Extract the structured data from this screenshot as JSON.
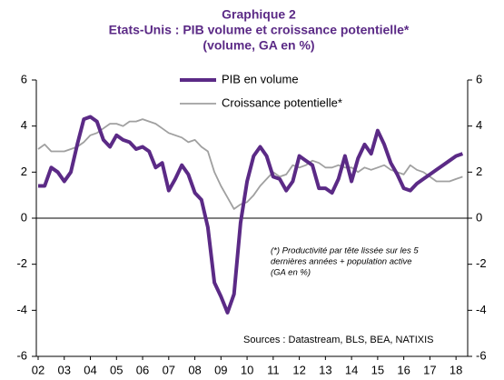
{
  "chart_data": {
    "type": "line",
    "title": [
      "Graphique 2",
      "Etats-Unis : PIB volume et croissance potentielle*",
      "(volume, GA en %)"
    ],
    "categories": [
      "02",
      null,
      null,
      null,
      "03",
      null,
      null,
      null,
      "04",
      null,
      null,
      null,
      "05",
      null,
      null,
      null,
      "06",
      null,
      null,
      null,
      "07",
      null,
      null,
      null,
      "08",
      null,
      null,
      null,
      "09",
      null,
      null,
      null,
      "10",
      null,
      null,
      null,
      "11",
      null,
      null,
      null,
      "12",
      null,
      null,
      null,
      "13",
      null,
      null,
      null,
      "14",
      null,
      null,
      null,
      "15",
      null,
      null,
      null,
      "16",
      null,
      null,
      null,
      "17",
      null,
      null,
      null,
      "18",
      null
    ],
    "series": [
      {
        "name": "PIB en volume",
        "color": "#5b2a86",
        "values": [
          1.4,
          1.4,
          2.2,
          2.0,
          1.6,
          2.0,
          3.2,
          4.3,
          4.4,
          4.2,
          3.4,
          3.1,
          3.6,
          3.4,
          3.3,
          3.0,
          3.1,
          2.9,
          2.2,
          2.4,
          1.2,
          1.7,
          2.3,
          1.9,
          1.1,
          0.8,
          -0.4,
          -2.8,
          -3.4,
          -4.1,
          -3.3,
          -0.2,
          1.6,
          2.7,
          3.1,
          2.7,
          1.8,
          1.7,
          1.2,
          1.6,
          2.7,
          2.5,
          2.3,
          1.3,
          1.3,
          1.1,
          1.7,
          2.7,
          1.6,
          2.6,
          3.2,
          2.8,
          3.8,
          3.2,
          2.4,
          1.9,
          1.3,
          1.2,
          1.5,
          1.7,
          1.9,
          2.1,
          2.3,
          2.5,
          2.7,
          2.8
        ]
      },
      {
        "name": "Croissance potentielle*",
        "color": "#a0a0a0",
        "values": [
          3.0,
          3.2,
          2.9,
          2.9,
          2.9,
          3.0,
          3.1,
          3.3,
          3.6,
          3.7,
          3.9,
          4.1,
          4.1,
          4.0,
          4.2,
          4.2,
          4.3,
          4.2,
          4.1,
          3.9,
          3.7,
          3.6,
          3.5,
          3.3,
          3.4,
          3.1,
          2.9,
          2.0,
          1.4,
          0.9,
          0.4,
          0.6,
          0.7,
          1.0,
          1.4,
          1.7,
          2.0,
          1.8,
          1.9,
          2.3,
          2.2,
          2.3,
          2.5,
          2.4,
          2.2,
          2.2,
          2.3,
          2.2,
          2.2,
          2.0,
          2.2,
          2.1,
          2.2,
          2.3,
          2.1,
          2.0,
          1.9,
          2.3,
          2.1,
          2.0,
          1.8,
          1.6,
          1.6,
          1.6,
          1.7,
          1.8
        ]
      }
    ],
    "ylim": [
      -6,
      6
    ],
    "yticks": [
      -6,
      -4,
      -2,
      0,
      2,
      4,
      6
    ],
    "y2lim": [
      -6,
      6
    ],
    "y2ticks": [
      -6,
      -4,
      -2,
      0,
      2,
      4,
      6
    ],
    "annotations": [
      "(*) Productivité par tête lissée sur les 5",
      "dernières années + population active",
      "(GA en %)"
    ],
    "source": "Sources : Datastream, BLS, BEA, NATIXIS"
  }
}
